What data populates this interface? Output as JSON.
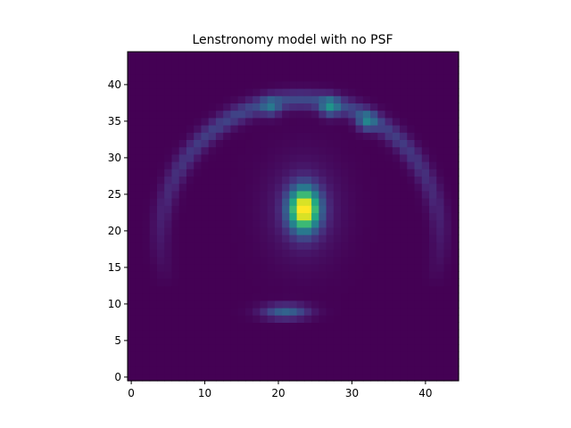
{
  "chart_data": {
    "type": "heatmap",
    "title": "Lenstronomy model with no PSF",
    "xlabel": "",
    "ylabel": "",
    "grid_size": 45,
    "origin": "lower",
    "colormap": "viridis",
    "xlim": [
      -0.5,
      44.5
    ],
    "ylim": [
      -0.5,
      44.5
    ],
    "xticks": [
      0,
      10,
      20,
      30,
      40
    ],
    "yticks": [
      0,
      5,
      10,
      15,
      20,
      25,
      30,
      35,
      40
    ],
    "background_value": 0.0,
    "value_range": [
      0,
      1
    ],
    "features": {
      "lens_galaxy": {
        "center": [
          23.5,
          23
        ],
        "peak": 1.0,
        "sigma_x": 1.4,
        "sigma_y": 2.0,
        "halo_peak": 0.12,
        "halo_sigma_x": 3.4,
        "halo_sigma_y": 4.6
      },
      "arc": {
        "center": [
          23,
          19
        ],
        "radius": 19,
        "width": 0.9,
        "start_angle_deg": -20,
        "end_angle_deg": 200,
        "base_intensity": 0.08,
        "peak_intensity": 0.22,
        "bright_spots": [
          {
            "x": 27,
            "y": 37,
            "value": 0.34
          },
          {
            "x": 32,
            "y": 35,
            "value": 0.3
          },
          {
            "x": 19,
            "y": 37,
            "value": 0.22
          }
        ]
      },
      "counter_image": {
        "center": [
          21,
          9
        ],
        "peak": 0.32,
        "sigma_x": 2.2,
        "sigma_y": 0.7
      }
    }
  }
}
